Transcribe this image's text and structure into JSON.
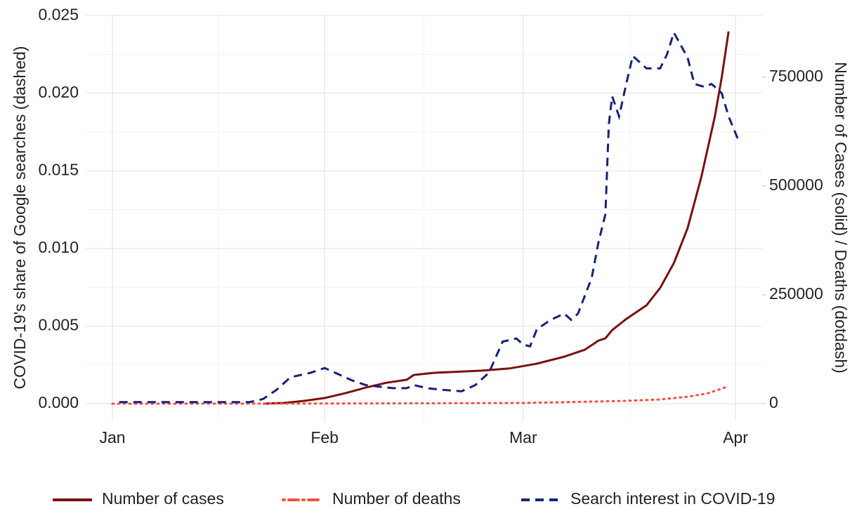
{
  "chart_data": {
    "type": "line",
    "ylabel": "COVID-19's share of Google searches (dashed)",
    "y2label": "Number of Cases (solid) / Deaths (dotdash)",
    "xlim": [
      -3.9,
      94.9
    ],
    "xticks": [
      {
        "value": 0,
        "label": "Jan"
      },
      {
        "value": 31,
        "label": "Feb"
      },
      {
        "value": 60,
        "label": "Mar"
      },
      {
        "value": 91,
        "label": "Apr"
      }
    ],
    "x_minor_ticks": [
      15.5,
      45.5,
      75.5
    ],
    "ylim": [
      -0.00113,
      0.0251
    ],
    "yticks": [
      {
        "value": 0,
        "label": "0.000"
      },
      {
        "value": 0.005,
        "label": "0.005"
      },
      {
        "value": 0.01,
        "label": "0.010"
      },
      {
        "value": 0.015,
        "label": "0.015"
      },
      {
        "value": 0.02,
        "label": "0.020"
      },
      {
        "value": 0.025,
        "label": "0.025"
      }
    ],
    "y_minor_ticks": [
      0.0025,
      0.0075,
      0.0125,
      0.0175,
      0.0225
    ],
    "y2lim": [
      -40300,
      895000
    ],
    "y2ticks": [
      0,
      250000,
      500000,
      750000
    ],
    "grid": true,
    "legend": "bottom",
    "series": [
      {
        "name": "Number of cases",
        "color": "#7a1010",
        "linestyle": "solid",
        "axis": "y2",
        "x": [
          22,
          25,
          28,
          31,
          34,
          37,
          40,
          43,
          44,
          47,
          54,
          58,
          62,
          66,
          69,
          71,
          72,
          73,
          75,
          78,
          80,
          82,
          84,
          86,
          87,
          88,
          89,
          90
        ],
        "values": [
          0,
          1600,
          6500,
          13000,
          24000,
          37000,
          48000,
          55000,
          66000,
          71000,
          76000,
          81000,
          92000,
          108000,
          124000,
          145000,
          150000,
          169000,
          194000,
          226000,
          266000,
          323000,
          403000,
          520000,
          590000,
          660000,
          750000,
          855000
        ]
      },
      {
        "name": "Number of deaths",
        "color": "#f4513c",
        "linestyle": "dotdash",
        "axis": "y2",
        "x": [
          0,
          30,
          60,
          75,
          80,
          84,
          87,
          90
        ],
        "values": [
          0,
          300,
          1600,
          6500,
          9700,
          16000,
          24000,
          40000
        ]
      },
      {
        "name": "Search interest in COVID-19",
        "color": "#142278",
        "linestyle": "dashed",
        "axis": "y",
        "x": [
          1,
          20,
          22,
          24,
          26,
          29,
          31,
          33,
          35,
          37,
          39,
          41,
          43,
          44,
          46,
          48,
          51,
          53,
          55,
          56,
          57,
          59,
          60,
          61,
          62,
          64,
          66,
          67,
          68,
          70,
          71,
          72,
          72.5,
          73,
          74,
          75,
          76,
          78,
          80,
          81,
          82,
          84,
          85,
          86.5,
          87.5,
          89,
          90,
          91.4
        ],
        "values": [
          0.0001,
          0.0001,
          0.0003,
          0.0009,
          0.0017,
          0.002,
          0.0023,
          0.0019,
          0.0015,
          0.0012,
          0.0011,
          0.001,
          0.001,
          0.0012,
          0.001,
          0.0009,
          0.0008,
          0.0012,
          0.002,
          0.003,
          0.004,
          0.0042,
          0.0038,
          0.0037,
          0.0048,
          0.0054,
          0.0058,
          0.0054,
          0.0058,
          0.0081,
          0.0104,
          0.0122,
          0.018,
          0.0198,
          0.0185,
          0.0205,
          0.0224,
          0.0216,
          0.0216,
          0.0225,
          0.0239,
          0.0223,
          0.0206,
          0.0204,
          0.0206,
          0.02,
          0.0185,
          0.017
        ]
      }
    ]
  }
}
